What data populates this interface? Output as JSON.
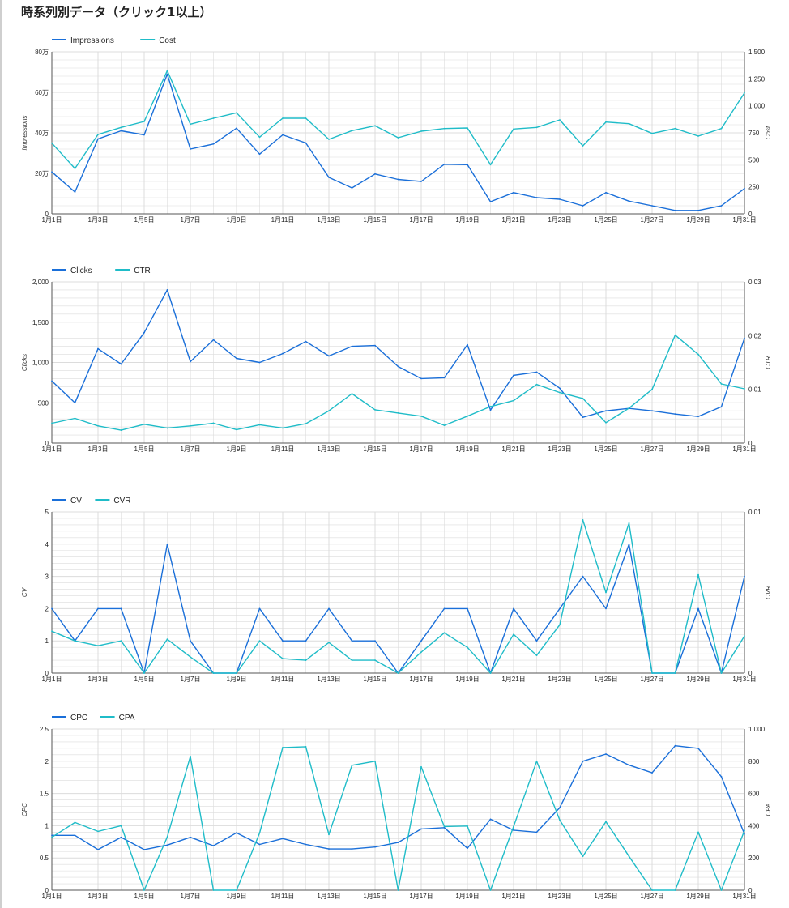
{
  "page": {
    "title": "時系列別データ（クリック1以上）"
  },
  "colors": {
    "series1": "#1a6fd9",
    "series2": "#1fbcc8",
    "grid": "#dcdcdc",
    "axis": "#555555"
  },
  "chart_data": [
    {
      "type": "line",
      "legend_position": "top-left",
      "grid": true,
      "x": [
        "1月1日",
        "1月2日",
        "1月3日",
        "1月4日",
        "1月5日",
        "1月6日",
        "1月7日",
        "1月8日",
        "1月9日",
        "1月10日",
        "1月11日",
        "1月12日",
        "1月13日",
        "1月14日",
        "1月15日",
        "1月16日",
        "1月17日",
        "1月18日",
        "1月19日",
        "1月20日",
        "1月21日",
        "1月22日",
        "1月23日",
        "1月24日",
        "1月25日",
        "1月26日",
        "1月27日",
        "1月28日",
        "1月29日",
        "1月30日",
        "1月31日"
      ],
      "x_tick_labels": [
        "1月1日",
        "1月3日",
        "1月5日",
        "1月7日",
        "1月9日",
        "1月11日",
        "1月13日",
        "1月15日",
        "1月17日",
        "1月19日",
        "1月21日",
        "1月23日",
        "1月25日",
        "1月27日",
        "1月29日",
        "1月31日"
      ],
      "y_left": {
        "label": "Impressions",
        "range": [
          0,
          800000
        ],
        "ticks": [
          0,
          200000,
          400000,
          600000,
          800000
        ],
        "tick_labels": [
          "0",
          "20万",
          "40万",
          "60万",
          "80万"
        ]
      },
      "y_right": {
        "label": "Cost",
        "range": [
          0,
          1500
        ],
        "ticks": [
          0,
          250,
          500,
          750,
          1000,
          1250,
          1500
        ],
        "tick_labels": [
          "0",
          "250",
          "500",
          "750",
          "1,000",
          "1,250",
          "1,500"
        ]
      },
      "series": [
        {
          "name": "Impressions",
          "axis": "left",
          "color": "#1a6fd9",
          "values": [
            207000,
            108000,
            370000,
            410000,
            390000,
            690000,
            320000,
            345000,
            423000,
            295000,
            390000,
            350000,
            180000,
            128000,
            197000,
            170000,
            160000,
            245000,
            243000,
            60000,
            105000,
            80000,
            72000,
            40000,
            105000,
            63000,
            40000,
            17000,
            17000,
            40000,
            125000
          ]
        },
        {
          "name": "Cost",
          "axis": "right",
          "color": "#1fbcc8",
          "values": [
            655,
            420,
            735,
            800,
            855,
            1325,
            830,
            885,
            935,
            710,
            885,
            885,
            690,
            770,
            815,
            705,
            765,
            790,
            795,
            455,
            785,
            800,
            870,
            630,
            850,
            835,
            745,
            790,
            720,
            790,
            1120
          ]
        }
      ]
    },
    {
      "type": "line",
      "legend_position": "top-left",
      "grid": true,
      "x": [
        "1月1日",
        "1月2日",
        "1月3日",
        "1月4日",
        "1月5日",
        "1月6日",
        "1月7日",
        "1月8日",
        "1月9日",
        "1月10日",
        "1月11日",
        "1月12日",
        "1月13日",
        "1月14日",
        "1月15日",
        "1月16日",
        "1月17日",
        "1月18日",
        "1月19日",
        "1月20日",
        "1月21日",
        "1月22日",
        "1月23日",
        "1月24日",
        "1月25日",
        "1月26日",
        "1月27日",
        "1月28日",
        "1月29日",
        "1月30日",
        "1月31日"
      ],
      "x_tick_labels": [
        "1月1日",
        "1月3日",
        "1月5日",
        "1月7日",
        "1月9日",
        "1月11日",
        "1月13日",
        "1月15日",
        "1月17日",
        "1月19日",
        "1月21日",
        "1月23日",
        "1月25日",
        "1月27日",
        "1月29日",
        "1月31日"
      ],
      "y_left": {
        "label": "Clicks",
        "range": [
          0,
          2000
        ],
        "ticks": [
          0,
          500,
          1000,
          1500,
          2000
        ],
        "tick_labels": [
          "0",
          "500",
          "1,000",
          "1,500",
          "2,000"
        ]
      },
      "y_right": {
        "label": "CTR",
        "range": [
          0,
          0.03
        ],
        "ticks": [
          0,
          0.01,
          0.02,
          0.03
        ],
        "tick_labels": [
          "0",
          "0.01",
          "0.02",
          "0.03"
        ]
      },
      "series": [
        {
          "name": "Clicks",
          "axis": "left",
          "color": "#1a6fd9",
          "values": [
            770,
            500,
            1170,
            980,
            1370,
            1900,
            1010,
            1280,
            1050,
            1000,
            1110,
            1260,
            1080,
            1200,
            1210,
            950,
            800,
            810,
            1220,
            410,
            840,
            880,
            680,
            320,
            400,
            430,
            400,
            360,
            330,
            450,
            1300
          ]
        },
        {
          "name": "CTR",
          "axis": "right",
          "color": "#1fbcc8",
          "values": [
            0.0037,
            0.0046,
            0.0032,
            0.0024,
            0.0035,
            0.0028,
            0.0032,
            0.0037,
            0.0025,
            0.0034,
            0.0028,
            0.0036,
            0.006,
            0.0092,
            0.0062,
            0.0056,
            0.005,
            0.0033,
            0.005,
            0.0068,
            0.0079,
            0.0109,
            0.0094,
            0.0083,
            0.0038,
            0.0065,
            0.01,
            0.0201,
            0.0165,
            0.011,
            0.0101
          ]
        }
      ]
    },
    {
      "type": "line",
      "legend_position": "top-left",
      "grid": true,
      "x": [
        "1月1日",
        "1月2日",
        "1月3日",
        "1月4日",
        "1月5日",
        "1月6日",
        "1月7日",
        "1月8日",
        "1月9日",
        "1月10日",
        "1月11日",
        "1月12日",
        "1月13日",
        "1月14日",
        "1月15日",
        "1月16日",
        "1月17日",
        "1月18日",
        "1月19日",
        "1月20日",
        "1月21日",
        "1月22日",
        "1月23日",
        "1月24日",
        "1月25日",
        "1月26日",
        "1月27日",
        "1月28日",
        "1月29日",
        "1月30日",
        "1月31日"
      ],
      "x_tick_labels": [
        "1月1日",
        "1月3日",
        "1月5日",
        "1月7日",
        "1月9日",
        "1月11日",
        "1月13日",
        "1月15日",
        "1月17日",
        "1月19日",
        "1月21日",
        "1月23日",
        "1月25日",
        "1月27日",
        "1月29日",
        "1月31日"
      ],
      "y_left": {
        "label": "CV",
        "range": [
          0,
          5
        ],
        "ticks": [
          0,
          1,
          2,
          3,
          4,
          5
        ],
        "tick_labels": [
          "0",
          "1",
          "2",
          "3",
          "4",
          "5"
        ]
      },
      "y_right": {
        "label": "CVR",
        "range": [
          0,
          0.01
        ],
        "ticks": [
          0,
          0.01
        ],
        "tick_labels": [
          "0",
          "0.01"
        ]
      },
      "series": [
        {
          "name": "CV",
          "axis": "left",
          "color": "#1a6fd9",
          "values": [
            2,
            1,
            2,
            2,
            0,
            4,
            1,
            0,
            0,
            2,
            1,
            1,
            2,
            1,
            1,
            0,
            1,
            2,
            2,
            0,
            2,
            1,
            2,
            3,
            2,
            4,
            0,
            0,
            2,
            0,
            3
          ]
        },
        {
          "name": "CVR",
          "axis": "right",
          "color": "#1fbcc8",
          "values": [
            0.0026,
            0.002,
            0.0017,
            0.002,
            0,
            0.0021,
            0.001,
            0,
            0,
            0.002,
            0.0009,
            0.0008,
            0.0019,
            0.0008,
            0.0008,
            0,
            0.0013,
            0.0025,
            0.0016,
            0,
            0.0024,
            0.0011,
            0.003,
            0.0095,
            0.005,
            0.0093,
            0,
            0,
            0.0061,
            0,
            0.0023
          ]
        }
      ]
    },
    {
      "type": "line",
      "legend_position": "top-left",
      "grid": true,
      "x": [
        "1月1日",
        "1月2日",
        "1月3日",
        "1月4日",
        "1月5日",
        "1月6日",
        "1月7日",
        "1月8日",
        "1月9日",
        "1月10日",
        "1月11日",
        "1月12日",
        "1月13日",
        "1月14日",
        "1月15日",
        "1月16日",
        "1月17日",
        "1月18日",
        "1月19日",
        "1月20日",
        "1月21日",
        "1月22日",
        "1月23日",
        "1月24日",
        "1月25日",
        "1月26日",
        "1月27日",
        "1月28日",
        "1月29日",
        "1月30日",
        "1月31日"
      ],
      "x_tick_labels": [
        "1月1日",
        "1月3日",
        "1月5日",
        "1月7日",
        "1月9日",
        "1月11日",
        "1月13日",
        "1月15日",
        "1月17日",
        "1月19日",
        "1月21日",
        "1月23日",
        "1月25日",
        "1月27日",
        "1月29日",
        "1月31日"
      ],
      "y_left": {
        "label": "CPC",
        "range": [
          0,
          2.5
        ],
        "ticks": [
          0,
          0.5,
          1,
          1.5,
          2,
          2.5
        ],
        "tick_labels": [
          "0",
          "0.5",
          "1",
          "1.5",
          "2",
          "2.5"
        ]
      },
      "y_right": {
        "label": "CPA",
        "range": [
          0,
          1000
        ],
        "ticks": [
          0,
          200,
          400,
          600,
          800,
          1000
        ],
        "tick_labels": [
          "0",
          "200",
          "400",
          "600",
          "800",
          "1,000"
        ]
      },
      "series": [
        {
          "name": "CPC",
          "axis": "left",
          "color": "#1a6fd9",
          "values": [
            0.85,
            0.85,
            0.63,
            0.82,
            0.63,
            0.7,
            0.82,
            0.69,
            0.89,
            0.71,
            0.8,
            0.71,
            0.64,
            0.64,
            0.67,
            0.74,
            0.95,
            0.97,
            0.65,
            1.1,
            0.93,
            0.9,
            1.28,
            2.0,
            2.11,
            1.94,
            1.82,
            2.24,
            2.2,
            1.76,
            0.87
          ]
        },
        {
          "name": "CPA",
          "axis": "right",
          "color": "#1fbcc8",
          "values": [
            328,
            420,
            365,
            400,
            0,
            330,
            830,
            0,
            0,
            355,
            885,
            890,
            345,
            775,
            800,
            0,
            765,
            395,
            398,
            0,
            395,
            800,
            435,
            210,
            425,
            210,
            0,
            0,
            360,
            0,
            370
          ]
        }
      ]
    }
  ]
}
